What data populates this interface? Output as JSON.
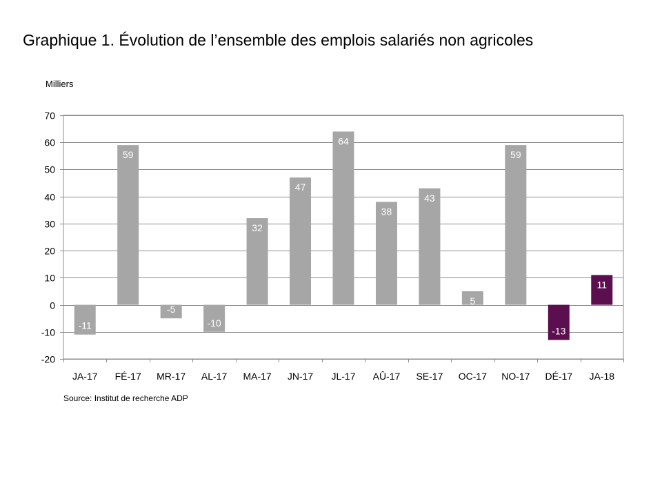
{
  "title": "Graphique 1. Évolution de l’ensemble des emplois salariés non agricoles",
  "unit_label": "Milliers",
  "source": "Source: Institut de recherche ADP",
  "chart_data": {
    "type": "bar",
    "title": "Graphique 1. Évolution de l’ensemble des emplois salariés non agricoles",
    "ylabel": "Milliers",
    "xlabel": "",
    "categories": [
      "JA-17",
      "FÉ-17",
      "MR-17",
      "AL-17",
      "MA-17",
      "JN-17",
      "JL-17",
      "AÛ-17",
      "SE-17",
      "OC-17",
      "NO-17",
      "DÉ-17",
      "JA-18"
    ],
    "values": [
      -11,
      59,
      -5,
      -10,
      32,
      47,
      64,
      38,
      43,
      5,
      59,
      -13,
      11
    ],
    "data_labels": [
      "-11",
      "59",
      "-5",
      "-10",
      "32",
      "47",
      "64",
      "38",
      "43",
      "5",
      "59",
      "-13",
      "11"
    ],
    "ylim": [
      -20,
      70
    ],
    "yticks": [
      -20,
      -10,
      0,
      10,
      20,
      30,
      40,
      50,
      60,
      70
    ],
    "grid": true,
    "legend": "none",
    "colors": {
      "default_bar": "#a6a6a6",
      "highlight_bar": "#5b0f4f",
      "highlight_categories": [
        "DÉ-17",
        "JA-18"
      ],
      "gridline": "#8c8c8c",
      "label_text": "#ffffff"
    }
  }
}
